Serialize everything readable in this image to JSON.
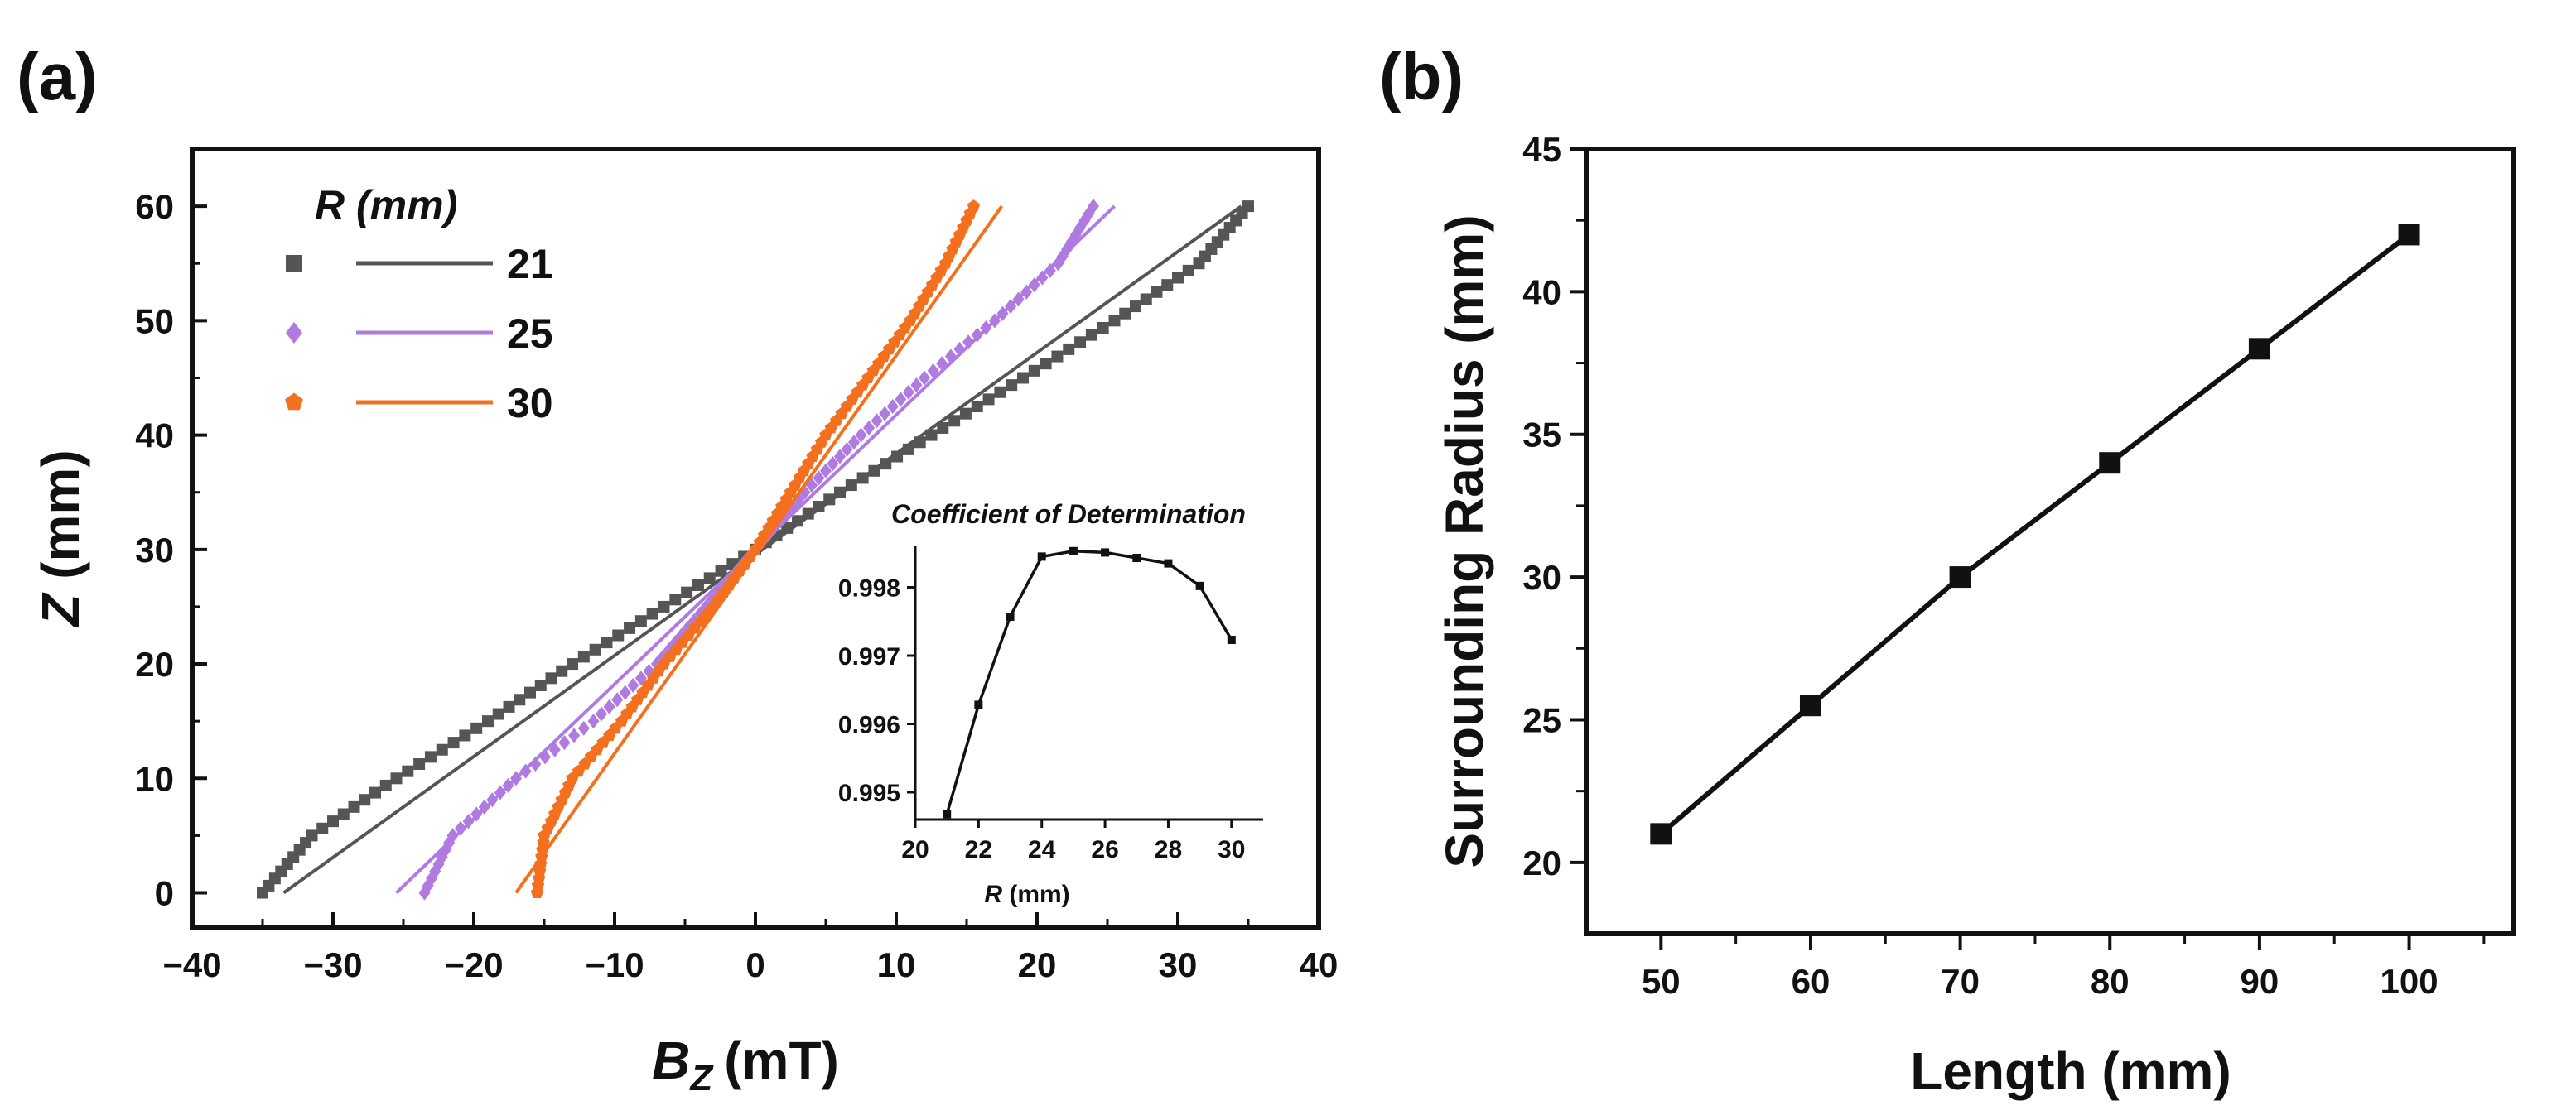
{
  "colors": {
    "r21": "#555555",
    "r25": "#b07be0",
    "r30": "#f5701e",
    "axis": "#111111"
  },
  "chart_data": [
    {
      "panel": "(a)",
      "type": "line",
      "xlabel_sym": "B",
      "xlabel_sub": "Z",
      "xlabel_unit": "(mT)",
      "ylabel_sym": "Z",
      "ylabel_unit": "(mm)",
      "xlim": [
        -40,
        40
      ],
      "ylim": [
        -3,
        65
      ],
      "xticks": [
        -40,
        -30,
        -20,
        -10,
        0,
        10,
        20,
        30,
        40
      ],
      "xtick_labels": [
        "−40",
        "−30",
        "−20",
        "−10",
        "0",
        "10",
        "20",
        "30",
        "40"
      ],
      "yticks": [
        0,
        10,
        20,
        30,
        40,
        50,
        60
      ],
      "legend_title_sym": "R",
      "legend_title_unit": "(mm)",
      "legend_position": "top-left",
      "series": [
        {
          "name": "21",
          "marker": "square",
          "color_key": "r21",
          "data_z": [
            0,
            5,
            10,
            15,
            20,
            25,
            30,
            35,
            40,
            45,
            50,
            55,
            60
          ],
          "data_b": [
            -35,
            -31.5,
            -25.5,
            -19,
            -13,
            -6.5,
            0,
            6,
            12.5,
            19,
            25.5,
            31.5,
            35
          ],
          "fit_z": [
            0,
            60
          ],
          "fit_b": [
            -33.5,
            34.5
          ]
        },
        {
          "name": "25",
          "marker": "diamond",
          "color_key": "r25",
          "data_z": [
            0,
            5,
            10,
            15,
            20,
            25,
            30,
            35,
            40,
            45,
            50,
            55,
            60
          ],
          "data_b": [
            -23.5,
            -21.5,
            -17,
            -11.5,
            -7,
            -3.5,
            0,
            3.5,
            7.5,
            12,
            17,
            21.5,
            24
          ],
          "fit_z": [
            0,
            60
          ],
          "fit_b": [
            -25.5,
            25.5
          ]
        },
        {
          "name": "30",
          "marker": "pentagon",
          "color_key": "r30",
          "data_z": [
            0,
            5,
            10,
            15,
            20,
            25,
            30,
            35,
            40,
            45,
            50,
            55,
            60
          ],
          "data_b": [
            -15.5,
            -15,
            -13,
            -9.5,
            -6.5,
            -3,
            0,
            2.5,
            5,
            8,
            11,
            13.5,
            15.5
          ],
          "fit_z": [
            0,
            60
          ],
          "fit_b": [
            -17,
            17.5
          ]
        }
      ],
      "inset": {
        "title": "Coefficient of Determination",
        "xlabel_sym": "R",
        "xlabel_unit": "(mm)",
        "xlim": [
          20,
          31
        ],
        "ylim": [
          0.9946,
          0.9986
        ],
        "xticks": [
          20,
          22,
          24,
          26,
          28,
          30
        ],
        "yticks": [
          0.995,
          0.996,
          0.997,
          0.998
        ],
        "x": [
          21,
          22,
          23,
          24,
          25,
          26,
          27,
          28,
          29,
          30
        ],
        "y": [
          0.99468,
          0.99628,
          0.99757,
          0.99845,
          0.99853,
          0.99851,
          0.99843,
          0.99835,
          0.99802,
          0.99723
        ]
      }
    },
    {
      "panel": "(b)",
      "type": "line",
      "xlabel": "Length (mm)",
      "ylabel": "Surrounding Radius (mm)",
      "xlim": [
        45,
        107
      ],
      "ylim": [
        17.5,
        45
      ],
      "xticks": [
        50,
        60,
        70,
        80,
        90,
        100
      ],
      "yticks": [
        20,
        25,
        30,
        35,
        40,
        45
      ],
      "x": [
        50,
        60,
        70,
        80,
        90,
        100
      ],
      "y": [
        21,
        25.5,
        30,
        34,
        38,
        42
      ]
    }
  ]
}
